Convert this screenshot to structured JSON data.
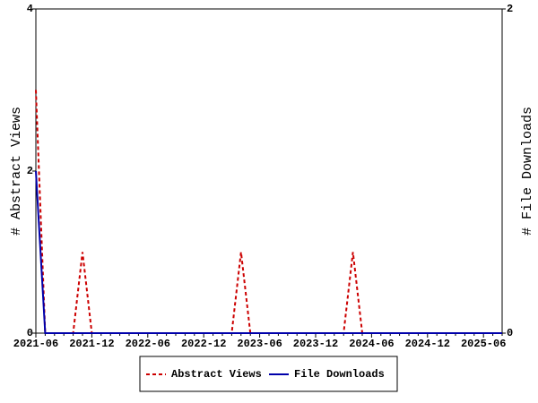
{
  "chart_data": {
    "type": "line",
    "x": [
      "2021-06",
      null,
      null,
      null,
      null,
      null,
      "2021-12",
      null,
      null,
      null,
      null,
      null,
      "2022-06",
      null,
      null,
      null,
      null,
      null,
      "2022-12",
      null,
      null,
      null,
      null,
      null,
      "2023-06",
      null,
      null,
      null,
      null,
      null,
      "2023-12",
      null,
      null,
      null,
      null,
      null,
      "2024-06",
      null,
      null,
      null,
      null,
      null,
      "2024-12",
      null,
      null,
      null,
      null,
      null,
      "2025-06",
      null,
      null
    ],
    "y_label": "# Abstract Views",
    "y2_label": "# File Downloads",
    "ylim": [
      0,
      4
    ],
    "yticks": [
      0,
      2,
      4
    ],
    "y2lim": [
      0,
      2
    ],
    "y2ticks": [
      0,
      2
    ],
    "series": [
      {
        "name": "Abstract Views",
        "color": "#cc0000",
        "dashed": true,
        "values": [
          3,
          0,
          0,
          0,
          0,
          1,
          0,
          0,
          0,
          0,
          0,
          0,
          0,
          0,
          0,
          0,
          0,
          0,
          0,
          0,
          0,
          0,
          1,
          0,
          0,
          0,
          0,
          0,
          0,
          0,
          0,
          0,
          0,
          0,
          1,
          0,
          0,
          0,
          0,
          0,
          0,
          0,
          0,
          0,
          0,
          0,
          0,
          0,
          0,
          0,
          0
        ]
      },
      {
        "name": "File Downloads",
        "color": "#0000aa",
        "axis": "y2",
        "values": [
          1,
          0,
          0,
          0,
          0,
          0,
          0,
          0,
          0,
          0,
          0,
          0,
          0,
          0,
          0,
          0,
          0,
          0,
          0,
          0,
          0,
          0,
          0,
          0,
          0,
          0,
          0,
          0,
          0,
          0,
          0,
          0,
          0,
          0,
          0,
          0,
          0,
          0,
          0,
          0,
          0,
          0,
          0,
          0,
          0,
          0,
          0,
          0,
          0,
          0,
          0
        ]
      }
    ]
  }
}
